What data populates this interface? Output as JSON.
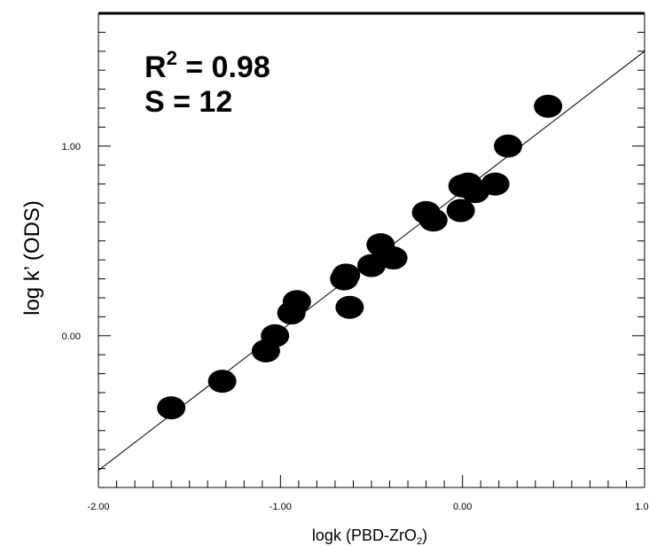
{
  "chart_data": {
    "type": "scatter",
    "xlabel_main": "logk (PBD-ZrO",
    "xlabel_sub": "2",
    "xlabel_tail": ")",
    "ylabel": "log k’ (ODS)",
    "xlim": [
      -2.0,
      1.0
    ],
    "ylim": [
      -0.8,
      1.7
    ],
    "x_ticks": [
      -2.0,
      -1.0,
      0.0,
      1.0
    ],
    "x_tick_labels": [
      "-2.00",
      "-1.00",
      "0.00",
      "1.00"
    ],
    "y_ticks": [
      0.0,
      1.0
    ],
    "y_tick_labels": [
      "0.00",
      "1.00"
    ],
    "annotations": {
      "r2_prefix": "R",
      "r2_sup": "2",
      "r2_value": " = 0.98",
      "s_line": "S = 12"
    },
    "regression_line": {
      "x": [
        -2.0,
        1.0
      ],
      "y": [
        -0.71,
        1.5
      ]
    },
    "points": [
      {
        "x": -1.6,
        "y": -0.38
      },
      {
        "x": -1.32,
        "y": -0.24
      },
      {
        "x": -1.08,
        "y": -0.08
      },
      {
        "x": -1.03,
        "y": 0.0
      },
      {
        "x": -0.94,
        "y": 0.12
      },
      {
        "x": -0.91,
        "y": 0.18
      },
      {
        "x": -0.65,
        "y": 0.3
      },
      {
        "x": -0.64,
        "y": 0.32
      },
      {
        "x": -0.62,
        "y": 0.15
      },
      {
        "x": -0.5,
        "y": 0.37
      },
      {
        "x": -0.45,
        "y": 0.48
      },
      {
        "x": -0.38,
        "y": 0.41
      },
      {
        "x": -0.2,
        "y": 0.65
      },
      {
        "x": -0.16,
        "y": 0.61
      },
      {
        "x": -0.01,
        "y": 0.66
      },
      {
        "x": 0.0,
        "y": 0.79
      },
      {
        "x": 0.03,
        "y": 0.8
      },
      {
        "x": 0.07,
        "y": 0.76
      },
      {
        "x": 0.18,
        "y": 0.8
      },
      {
        "x": 0.25,
        "y": 1.0
      },
      {
        "x": 0.47,
        "y": 1.21
      }
    ]
  }
}
